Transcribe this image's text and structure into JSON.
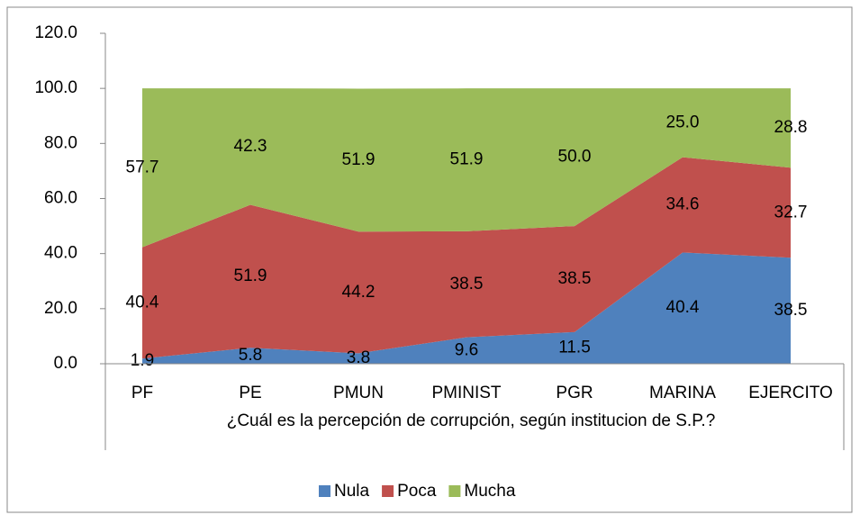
{
  "chart_data": {
    "type": "stacked_area",
    "x_label": "¿Cuál es la percepción de corrupción, según institucion de S.P.?",
    "categories": [
      "PF",
      "PE",
      "PMUN",
      "PMINIST",
      "PGR",
      "MARINA",
      "EJERCITO"
    ],
    "series": [
      {
        "name": "Nula",
        "color": "#4f81bd",
        "values": [
          1.9,
          5.8,
          3.8,
          9.6,
          11.5,
          40.4,
          38.5
        ],
        "value_labels": [
          "1.9",
          "5.8",
          "3.8",
          "9.6",
          "11.5",
          "40.4",
          "38.5"
        ]
      },
      {
        "name": "Poca",
        "color": "#c0504d",
        "values": [
          40.4,
          51.9,
          44.2,
          38.5,
          38.5,
          34.6,
          32.7
        ],
        "value_labels": [
          "40.4",
          "51.9",
          "44.2",
          "38.5",
          "38.5",
          "34.6",
          "32.7"
        ]
      },
      {
        "name": "Mucha",
        "color": "#9bbb59",
        "values": [
          57.7,
          42.3,
          51.9,
          51.9,
          50.0,
          25.0,
          28.8
        ],
        "value_labels": [
          "57.7",
          "42.3",
          "51.9",
          "51.9",
          "50.0",
          "25.0",
          "28.8"
        ]
      }
    ],
    "ylim": [
      0,
      120
    ],
    "yticks": [
      {
        "value": 0,
        "label": "0.0"
      },
      {
        "value": 20,
        "label": "20.0"
      },
      {
        "value": 40,
        "label": "40.0"
      },
      {
        "value": 60,
        "label": "60.0"
      },
      {
        "value": 80,
        "label": "80.0"
      },
      {
        "value": 100,
        "label": "100.0"
      },
      {
        "value": 120,
        "label": "120.0"
      }
    ],
    "legend": "bottom"
  }
}
